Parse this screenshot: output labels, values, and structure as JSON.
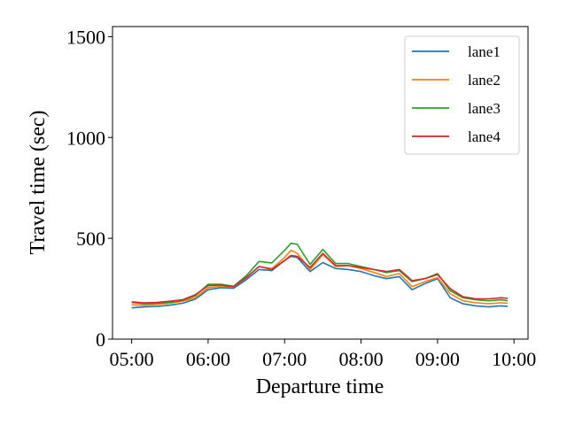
{
  "chart_data": {
    "type": "line",
    "title": "",
    "xlabel": "Departure time",
    "ylabel": "Travel time (sec)",
    "xlim": [
      "04:45",
      "10:11"
    ],
    "ylim": [
      0,
      1550
    ],
    "grid": false,
    "legend_position": "top-right",
    "x_ticks": [
      "05:00",
      "06:00",
      "07:00",
      "08:00",
      "09:00",
      "10:00"
    ],
    "y_ticks": [
      0,
      500,
      1000,
      1500
    ],
    "x": [
      "05:00",
      "05:10",
      "05:20",
      "05:30",
      "05:40",
      "05:50",
      "06:00",
      "06:10",
      "06:20",
      "06:30",
      "06:40",
      "06:50",
      "07:00",
      "07:05",
      "07:10",
      "07:20",
      "07:30",
      "07:40",
      "07:50",
      "08:00",
      "08:10",
      "08:20",
      "08:30",
      "08:40",
      "08:50",
      "09:00",
      "09:10",
      "09:20",
      "09:30",
      "09:40",
      "09:50",
      "09:55"
    ],
    "series": [
      {
        "name": "lane1",
        "color": "#1f77b4",
        "values": [
          155,
          160,
          162,
          168,
          178,
          198,
          245,
          255,
          252,
          295,
          345,
          340,
          390,
          410,
          405,
          335,
          380,
          350,
          345,
          335,
          315,
          300,
          310,
          245,
          275,
          300,
          205,
          175,
          165,
          160,
          165,
          162
        ]
      },
      {
        "name": "lane2",
        "color": "#ff7f0e",
        "values": [
          170,
          168,
          172,
          178,
          188,
          205,
          255,
          262,
          258,
          305,
          360,
          350,
          405,
          440,
          425,
          345,
          420,
          360,
          365,
          350,
          330,
          310,
          325,
          260,
          285,
          305,
          225,
          190,
          180,
          175,
          180,
          178
        ]
      },
      {
        "name": "lane3",
        "color": "#2ca02c",
        "values": [
          182,
          175,
          178,
          182,
          192,
          215,
          272,
          272,
          262,
          315,
          385,
          378,
          440,
          475,
          470,
          370,
          445,
          375,
          375,
          360,
          345,
          330,
          340,
          285,
          300,
          325,
          240,
          205,
          195,
          190,
          195,
          190
        ]
      },
      {
        "name": "lane4",
        "color": "#d62728",
        "values": [
          185,
          180,
          182,
          188,
          195,
          220,
          265,
          268,
          260,
          305,
          360,
          345,
          390,
          415,
          410,
          355,
          425,
          365,
          365,
          355,
          345,
          335,
          345,
          290,
          300,
          320,
          250,
          210,
          200,
          200,
          205,
          202
        ]
      }
    ]
  }
}
